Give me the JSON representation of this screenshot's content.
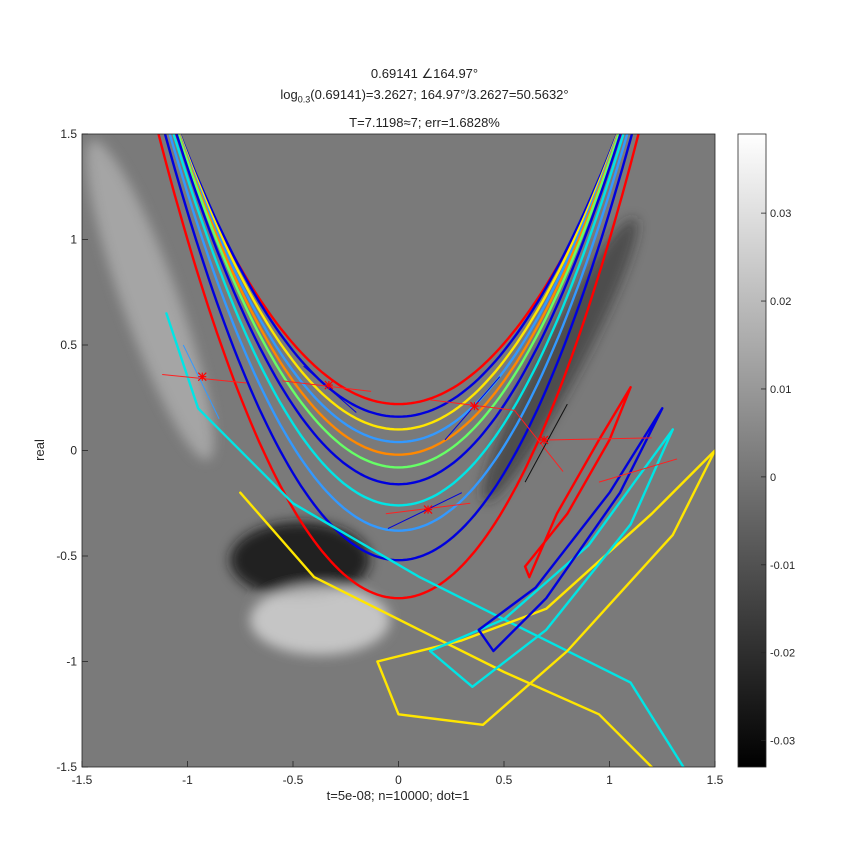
{
  "chart_data": {
    "type": "heatmap",
    "title_line1": "0.69141 ∠164.97°",
    "title_line2_pre": "log",
    "title_line2_sub": "0.3",
    "title_line2_post": "(0.69141)=3.2627; 164.97°/3.2627=50.5632°",
    "title_line3": "T=7.1198≈7; err=1.6828%",
    "xlabel": "t=5e-08; n=10000; dot=1",
    "ylabel": "real",
    "xlim": [
      -1.5,
      1.5
    ],
    "ylim": [
      -1.5,
      1.5
    ],
    "x_ticks": [
      -1.5,
      -1,
      -0.5,
      0,
      0.5,
      1,
      1.5
    ],
    "y_ticks": [
      -1.5,
      -1,
      -0.5,
      0,
      0.5,
      1,
      1.5
    ],
    "x_tick_labels": [
      "-1.5",
      "-1",
      "-0.5",
      "0",
      "0.5",
      "1",
      "1.5"
    ],
    "y_tick_labels": [
      "-1.5",
      "-1",
      "-0.5",
      "0",
      "0.5",
      "1",
      "1.5"
    ],
    "colorbar": {
      "min": -0.033,
      "max": 0.039,
      "ticks": [
        0.03,
        0.02,
        0.01,
        0,
        -0.01,
        -0.02,
        -0.03
      ],
      "tick_labels": [
        "0.03",
        "0.02",
        "0.01",
        "0",
        "-0.01",
        "-0.02",
        "-0.03"
      ],
      "colormap": "gray"
    },
    "background_color": "#7a7a7a",
    "contours": [
      {
        "shape": "parabola",
        "k": 1.15,
        "cx": 0,
        "cy": 0.22,
        "color": "#ff0000"
      },
      {
        "shape": "parabola",
        "k": 1.25,
        "cx": 0,
        "cy": 0.16,
        "color": "#0000dd"
      },
      {
        "shape": "parabola",
        "k": 1.3,
        "cx": 0,
        "cy": 0.1,
        "color": "#ffe600"
      },
      {
        "shape": "parabola",
        "k": 1.35,
        "cx": 0,
        "cy": 0.04,
        "color": "#3399ff"
      },
      {
        "shape": "parabola",
        "k": 1.4,
        "cx": 0,
        "cy": -0.02,
        "color": "#ff8800"
      },
      {
        "shape": "parabola",
        "k": 1.45,
        "cx": 0,
        "cy": -0.08,
        "color": "#66ff66"
      },
      {
        "shape": "parabola",
        "k": 1.5,
        "cx": 0,
        "cy": -0.16,
        "color": "#0000dd"
      },
      {
        "shape": "parabola",
        "k": 1.55,
        "cx": 0,
        "cy": -0.26,
        "color": "#00e5e5"
      },
      {
        "shape": "parabola",
        "k": 1.6,
        "cx": 0,
        "cy": -0.38,
        "color": "#3399ff"
      },
      {
        "shape": "parabola",
        "k": 1.65,
        "cx": 0,
        "cy": -0.52,
        "color": "#0000dd"
      },
      {
        "shape": "parabola",
        "k": 1.7,
        "cx": 0,
        "cy": -0.7,
        "color": "#ff0000"
      },
      {
        "shape": "loop",
        "points": [
          [
            -1.1,
            0.65
          ],
          [
            -0.95,
            0.2
          ],
          [
            -0.5,
            -0.25
          ],
          [
            0.1,
            -0.6
          ],
          [
            0.6,
            -0.85
          ],
          [
            1.1,
            -1.1
          ],
          [
            1.35,
            -1.5
          ]
        ],
        "color": "#00e5e5"
      },
      {
        "shape": "loop",
        "points": [
          [
            -0.75,
            -0.2
          ],
          [
            -0.4,
            -0.6
          ],
          [
            0.1,
            -0.85
          ],
          [
            0.5,
            -1.05
          ],
          [
            0.95,
            -1.25
          ],
          [
            1.2,
            -1.5
          ]
        ],
        "color": "#ffe600"
      },
      {
        "shape": "closed",
        "points": [
          [
            -0.1,
            -1.0
          ],
          [
            0.3,
            -0.9
          ],
          [
            0.7,
            -0.75
          ],
          [
            1.2,
            -0.3
          ],
          [
            1.5,
            0.0
          ],
          [
            1.3,
            -0.4
          ],
          [
            0.8,
            -0.95
          ],
          [
            0.4,
            -1.3
          ],
          [
            0.0,
            -1.25
          ],
          [
            -0.1,
            -1.0
          ]
        ],
        "color": "#ffe600"
      },
      {
        "shape": "closed",
        "points": [
          [
            0.15,
            -0.95
          ],
          [
            0.5,
            -0.8
          ],
          [
            0.9,
            -0.45
          ],
          [
            1.3,
            0.1
          ],
          [
            1.1,
            -0.35
          ],
          [
            0.7,
            -0.85
          ],
          [
            0.35,
            -1.12
          ],
          [
            0.15,
            -0.95
          ]
        ],
        "color": "#00e5e5"
      },
      {
        "shape": "closed",
        "points": [
          [
            0.38,
            -0.85
          ],
          [
            0.65,
            -0.65
          ],
          [
            1.0,
            -0.2
          ],
          [
            1.25,
            0.2
          ],
          [
            1.05,
            -0.2
          ],
          [
            0.7,
            -0.7
          ],
          [
            0.45,
            -0.95
          ],
          [
            0.38,
            -0.85
          ]
        ],
        "color": "#0000dd"
      },
      {
        "shape": "closed",
        "points": [
          [
            0.6,
            -0.55
          ],
          [
            0.8,
            -0.3
          ],
          [
            1.0,
            0.05
          ],
          [
            1.1,
            0.3
          ],
          [
            0.95,
            0.05
          ],
          [
            0.75,
            -0.3
          ],
          [
            0.62,
            -0.6
          ],
          [
            0.6,
            -0.55
          ]
        ],
        "color": "#ff0000"
      }
    ],
    "markers": [
      {
        "x": -0.93,
        "y": 0.35,
        "color": "#ff0000"
      },
      {
        "x": -0.33,
        "y": 0.31,
        "color": "#ff0000"
      },
      {
        "x": 0.36,
        "y": 0.21,
        "color": "#ff0000"
      },
      {
        "x": 0.69,
        "y": 0.05,
        "color": "#ff0000"
      },
      {
        "x": 0.14,
        "y": -0.28,
        "color": "#ff0000"
      }
    ],
    "segments": [
      {
        "x1": -1.12,
        "y1": 0.36,
        "x2": -0.72,
        "y2": 0.32,
        "color": "#ff2020"
      },
      {
        "x1": -1.02,
        "y1": 0.5,
        "x2": -0.85,
        "y2": 0.15,
        "color": "#3399ff"
      },
      {
        "x1": -0.55,
        "y1": 0.33,
        "x2": -0.13,
        "y2": 0.28,
        "color": "#ff2020"
      },
      {
        "x1": -0.45,
        "y1": 0.4,
        "x2": -0.2,
        "y2": 0.18,
        "color": "#0000dd"
      },
      {
        "x1": 0.15,
        "y1": 0.24,
        "x2": 0.55,
        "y2": 0.19,
        "color": "#ff2020"
      },
      {
        "x1": 0.55,
        "y1": 0.19,
        "x2": 0.78,
        "y2": -0.1,
        "color": "#ff2020"
      },
      {
        "x1": 0.22,
        "y1": 0.05,
        "x2": 0.48,
        "y2": 0.35,
        "color": "#0000dd"
      },
      {
        "x1": 0.6,
        "y1": -0.15,
        "x2": 0.8,
        "y2": 0.22,
        "color": "#111111"
      },
      {
        "x1": 0.7,
        "y1": 0.05,
        "x2": 1.2,
        "y2": 0.06,
        "color": "#ff2020"
      },
      {
        "x1": 0.95,
        "y1": -0.15,
        "x2": 1.32,
        "y2": -0.04,
        "color": "#ff2020"
      },
      {
        "x1": -0.06,
        "y1": -0.3,
        "x2": 0.34,
        "y2": -0.25,
        "color": "#ff2020"
      },
      {
        "x1": -0.05,
        "y1": -0.37,
        "x2": 0.3,
        "y2": -0.2,
        "color": "#0000dd"
      }
    ]
  }
}
